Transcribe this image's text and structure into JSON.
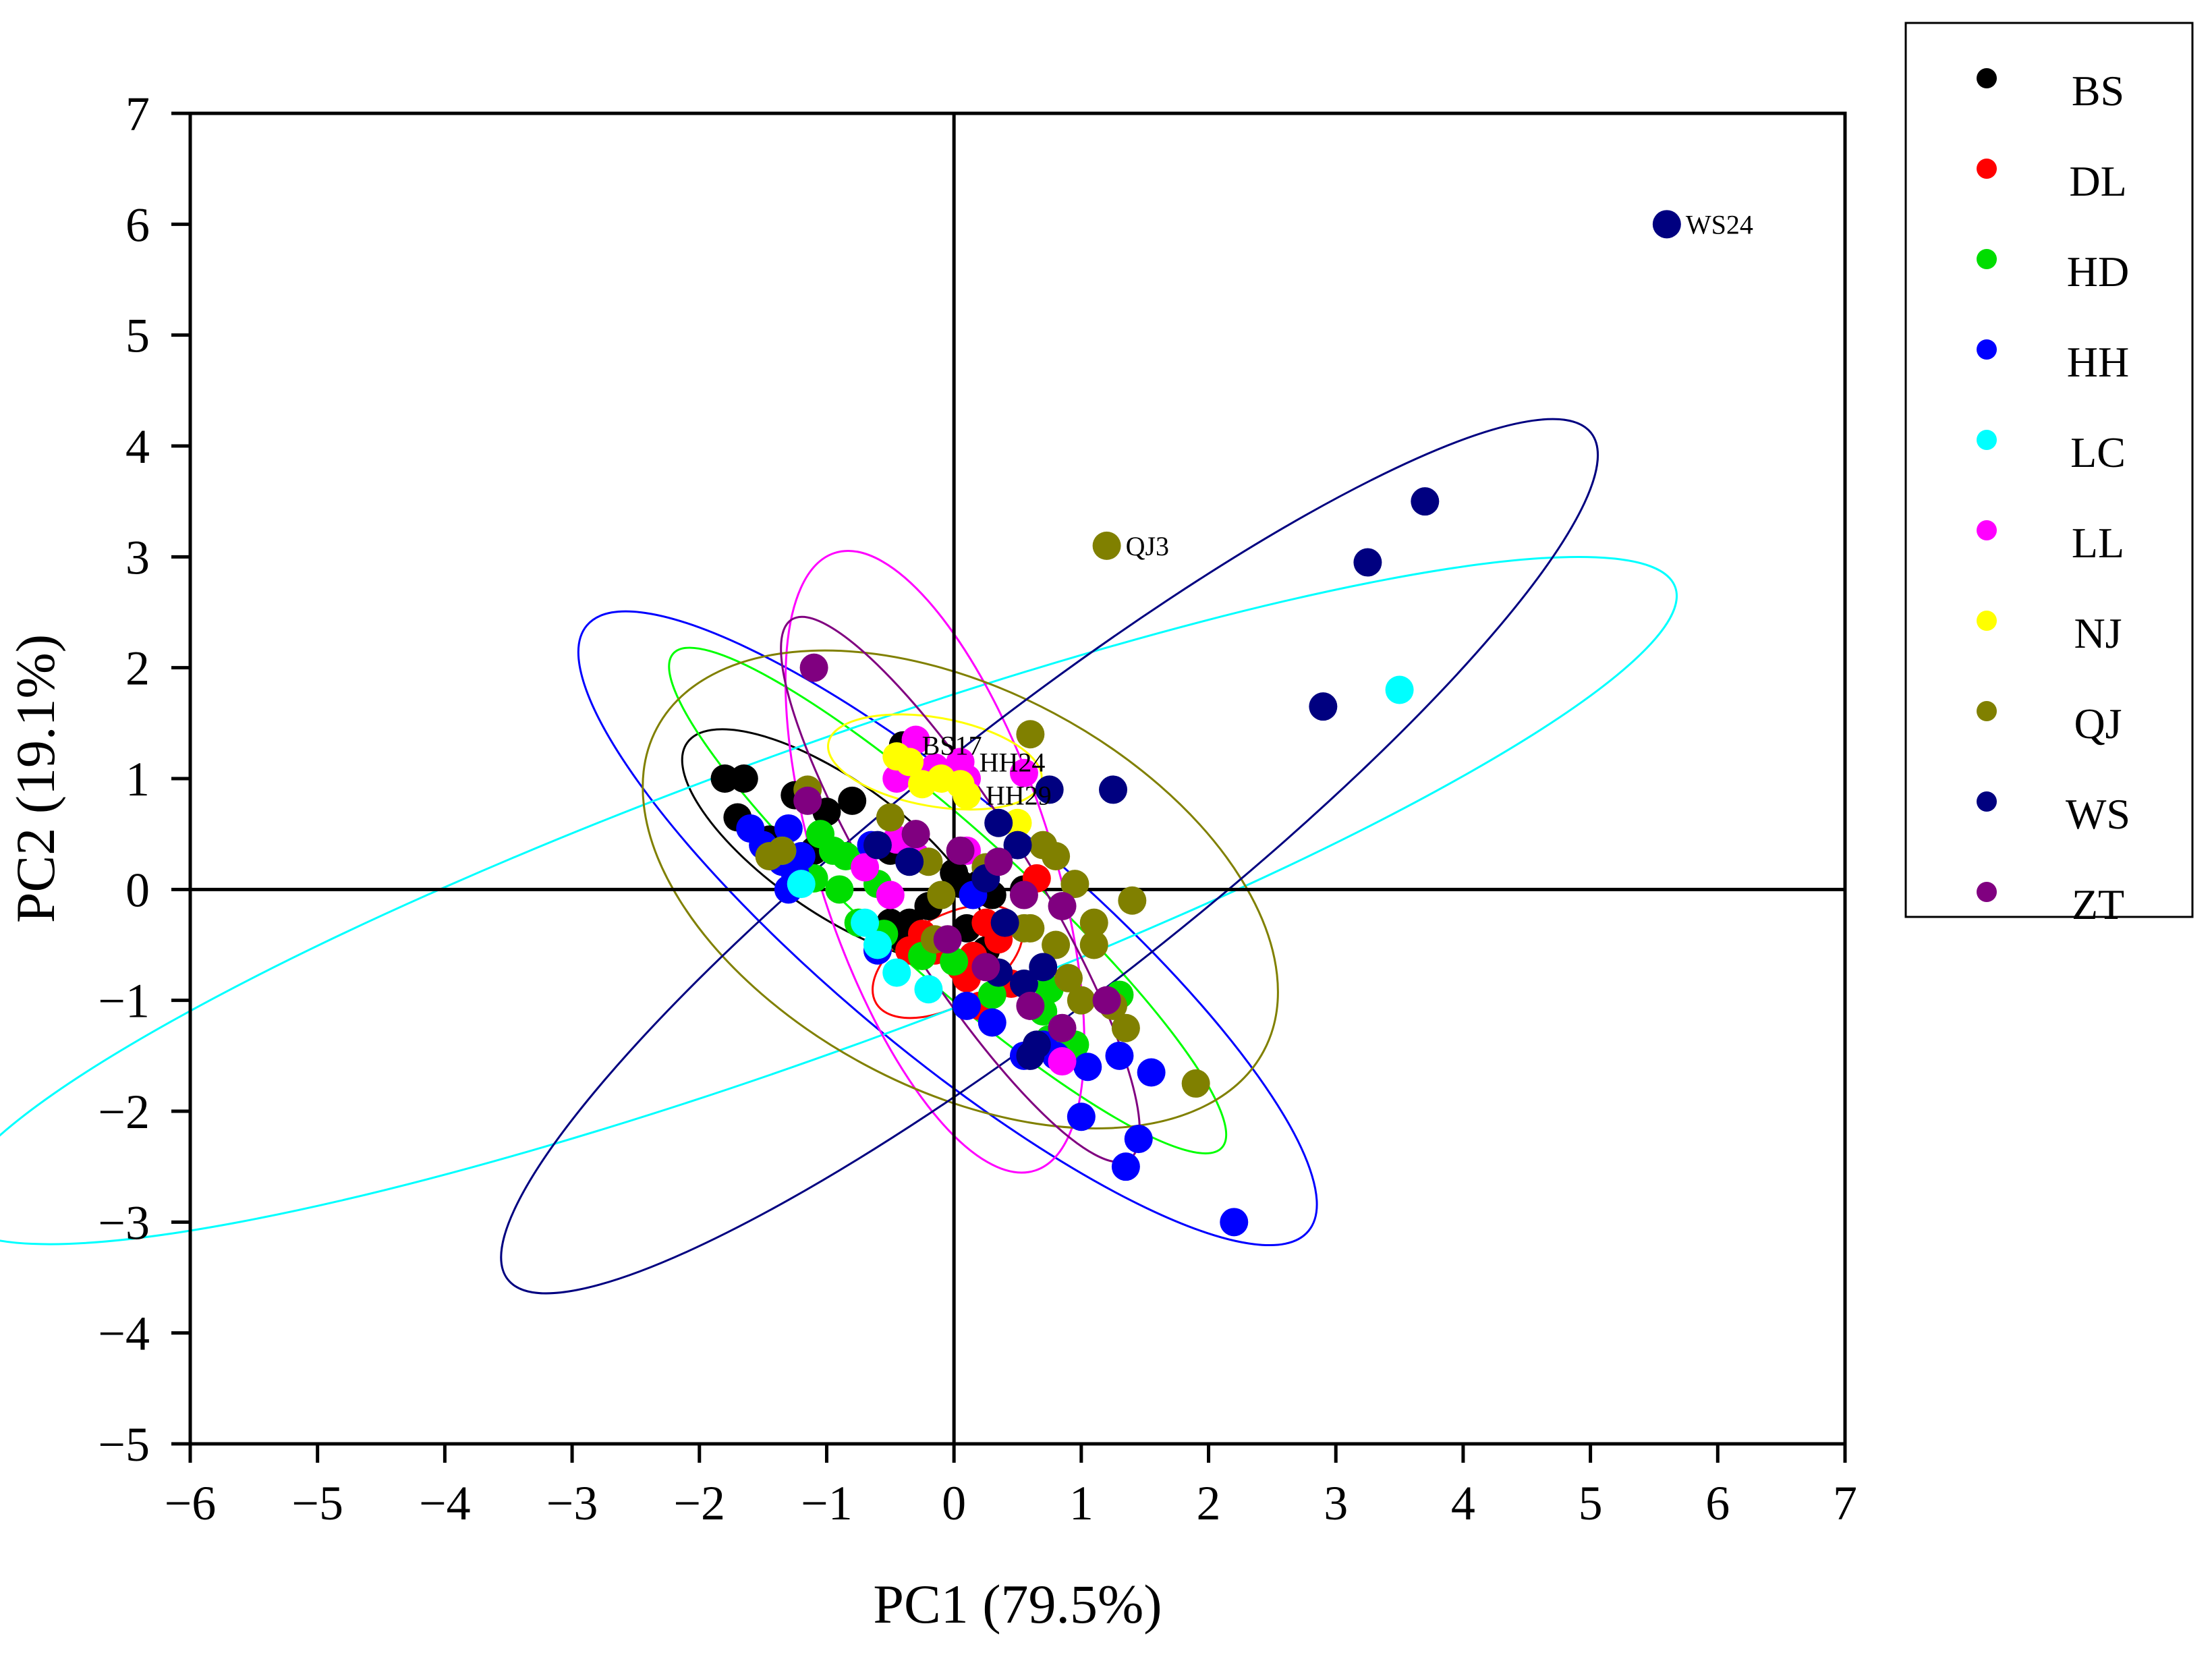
{
  "chart_data": {
    "type": "scatter",
    "title": "",
    "xlabel": "PC1 (79.5%)",
    "ylabel": "PC2 (19.1%)",
    "xlim": [
      -6,
      7
    ],
    "ylim": [
      -5,
      7
    ],
    "xticks": [
      -6,
      -5,
      -4,
      -3,
      -2,
      -1,
      0,
      1,
      2,
      3,
      4,
      5,
      6,
      7
    ],
    "yticks": [
      -5,
      -4,
      -3,
      -2,
      -1,
      0,
      1,
      2,
      3,
      4,
      5,
      6,
      7
    ],
    "xtick_labels": [
      "−6",
      "−5",
      "−4",
      "−3",
      "−2",
      "−1",
      "0",
      "1",
      "2",
      "3",
      "4",
      "5",
      "6",
      "7"
    ],
    "ytick_labels": [
      "−5",
      "−4",
      "−3",
      "−2",
      "−1",
      "0",
      "1",
      "2",
      "3",
      "4",
      "5",
      "6",
      "7"
    ],
    "grid": false,
    "zero_lines": true,
    "legend_position": "right",
    "series": [
      {
        "name": "BS",
        "color": "#000000",
        "points": [
          [
            -1.8,
            1.0
          ],
          [
            -1.65,
            1.0
          ],
          [
            -1.7,
            0.65
          ],
          [
            -1.45,
            0.45
          ],
          [
            -1.25,
            0.85
          ],
          [
            -1.0,
            0.7
          ],
          [
            -0.8,
            0.8
          ],
          [
            -1.1,
            0.35
          ],
          [
            -0.4,
            1.3
          ],
          [
            -0.5,
            0.35
          ],
          [
            -0.35,
            -0.3
          ],
          [
            -0.4,
            -0.45
          ],
          [
            -0.2,
            -0.15
          ],
          [
            0.0,
            0.15
          ],
          [
            0.05,
            0.05
          ],
          [
            0.2,
            0.05
          ],
          [
            0.3,
            -0.05
          ],
          [
            -0.1,
            -0.5
          ],
          [
            0.1,
            -0.35
          ],
          [
            0.25,
            -0.55
          ],
          [
            0.55,
            0.0
          ],
          [
            0.35,
            -0.75
          ],
          [
            -0.5,
            -0.3
          ]
        ]
      },
      {
        "name": "DL",
        "color": "#ff0000",
        "points": [
          [
            -0.25,
            -0.4
          ],
          [
            -0.15,
            -0.55
          ],
          [
            0.05,
            -0.7
          ],
          [
            0.25,
            -0.3
          ],
          [
            0.35,
            -0.45
          ],
          [
            0.15,
            -0.6
          ],
          [
            0.45,
            -0.85
          ],
          [
            0.65,
            0.1
          ],
          [
            0.2,
            -1.05
          ],
          [
            0.1,
            -0.8
          ],
          [
            -0.35,
            -0.55
          ]
        ]
      },
      {
        "name": "HD",
        "color": "#00dd00",
        "points": [
          [
            -1.05,
            0.5
          ],
          [
            -0.95,
            0.35
          ],
          [
            -0.85,
            0.3
          ],
          [
            -1.1,
            0.1
          ],
          [
            -0.75,
            -0.3
          ],
          [
            -0.55,
            -0.4
          ],
          [
            -0.25,
            -0.6
          ],
          [
            0.0,
            -0.65
          ],
          [
            0.3,
            -0.95
          ],
          [
            0.7,
            -1.1
          ],
          [
            0.75,
            -1.35
          ],
          [
            0.95,
            -1.4
          ],
          [
            1.3,
            -0.95
          ],
          [
            0.75,
            -0.9
          ],
          [
            -0.6,
            0.05
          ],
          [
            -0.9,
            0.0
          ]
        ]
      },
      {
        "name": "HH",
        "color": "#0000ff",
        "points": [
          [
            -1.6,
            0.55
          ],
          [
            -1.5,
            0.4
          ],
          [
            -1.35,
            0.25
          ],
          [
            -1.25,
            0.15
          ],
          [
            -1.3,
            0.0
          ],
          [
            -1.2,
            0.3
          ],
          [
            -1.3,
            0.55
          ],
          [
            -0.6,
            -0.55
          ],
          [
            -0.65,
            0.4
          ],
          [
            0.1,
            -1.05
          ],
          [
            0.3,
            -1.2
          ],
          [
            0.55,
            -1.5
          ],
          [
            0.7,
            -1.4
          ],
          [
            0.8,
            -1.5
          ],
          [
            1.05,
            -1.6
          ],
          [
            1.3,
            -1.5
          ],
          [
            1.55,
            -1.65
          ],
          [
            1.45,
            -2.25
          ],
          [
            1.0,
            -2.05
          ],
          [
            1.35,
            -2.5
          ],
          [
            2.2,
            -3.0
          ],
          [
            0.15,
            -0.05
          ]
        ]
      },
      {
        "name": "LC",
        "color": "#00ffff",
        "points": [
          [
            -1.35,
            0.35
          ],
          [
            -1.2,
            0.05
          ],
          [
            -0.7,
            -0.3
          ],
          [
            -0.6,
            -0.5
          ],
          [
            -0.45,
            -0.75
          ],
          [
            -0.2,
            -0.9
          ],
          [
            3.5,
            1.8
          ]
        ]
      },
      {
        "name": "LL",
        "color": "#ff00ff",
        "points": [
          [
            -0.3,
            1.35
          ],
          [
            -0.45,
            1.0
          ],
          [
            -0.15,
            1.1
          ],
          [
            0.05,
            1.15
          ],
          [
            0.1,
            1.0
          ],
          [
            0.55,
            1.05
          ],
          [
            -0.45,
            0.45
          ],
          [
            -0.3,
            0.3
          ],
          [
            -0.5,
            -0.05
          ],
          [
            0.1,
            0.35
          ],
          [
            0.85,
            -1.55
          ],
          [
            -0.7,
            0.2
          ]
        ]
      },
      {
        "name": "NJ",
        "color": "#ffff00",
        "points": [
          [
            -0.45,
            1.2
          ],
          [
            -0.35,
            1.15
          ],
          [
            -0.1,
            1.0
          ],
          [
            0.05,
            0.95
          ],
          [
            0.1,
            0.85
          ],
          [
            -0.25,
            0.95
          ],
          [
            0.5,
            0.6
          ]
        ]
      },
      {
        "name": "QJ",
        "color": "#808000",
        "points": [
          [
            1.2,
            3.1
          ],
          [
            -1.15,
            0.9
          ],
          [
            -1.45,
            0.3
          ],
          [
            -1.35,
            0.35
          ],
          [
            -0.5,
            0.65
          ],
          [
            -0.2,
            0.25
          ],
          [
            0.6,
            1.4
          ],
          [
            0.7,
            0.4
          ],
          [
            0.8,
            0.3
          ],
          [
            0.95,
            0.05
          ],
          [
            1.4,
            -0.1
          ],
          [
            1.1,
            -0.5
          ],
          [
            0.9,
            -0.8
          ],
          [
            1.0,
            -1.0
          ],
          [
            1.25,
            -1.05
          ],
          [
            1.35,
            -1.25
          ],
          [
            1.9,
            -1.75
          ],
          [
            -0.15,
            -0.45
          ],
          [
            0.55,
            -0.35
          ],
          [
            0.8,
            -0.5
          ],
          [
            1.1,
            -0.3
          ],
          [
            0.6,
            -0.35
          ],
          [
            -0.1,
            -0.05
          ],
          [
            0.25,
            0.2
          ]
        ]
      },
      {
        "name": "WS",
        "color": "#000080",
        "points": [
          [
            5.6,
            6.0
          ],
          [
            3.7,
            3.5
          ],
          [
            3.25,
            2.95
          ],
          [
            2.9,
            1.65
          ],
          [
            1.25,
            0.9
          ],
          [
            0.75,
            0.9
          ],
          [
            0.35,
            0.6
          ],
          [
            0.25,
            0.1
          ],
          [
            0.5,
            0.4
          ],
          [
            -0.35,
            0.25
          ],
          [
            -0.6,
            0.4
          ],
          [
            0.4,
            -0.3
          ],
          [
            0.35,
            -0.75
          ],
          [
            0.55,
            -0.85
          ],
          [
            0.7,
            -0.7
          ],
          [
            0.65,
            -1.4
          ],
          [
            0.6,
            -1.5
          ]
        ]
      },
      {
        "name": "ZT",
        "color": "#800080",
        "points": [
          [
            -1.1,
            2.0
          ],
          [
            -1.15,
            0.8
          ],
          [
            -0.3,
            0.5
          ],
          [
            0.05,
            0.35
          ],
          [
            0.35,
            0.25
          ],
          [
            0.55,
            -0.05
          ],
          [
            0.85,
            -0.15
          ],
          [
            0.6,
            -1.05
          ],
          [
            0.85,
            -1.25
          ],
          [
            1.2,
            -1.0
          ],
          [
            -0.05,
            -0.45
          ],
          [
            0.25,
            -0.7
          ]
        ]
      }
    ],
    "confidence_ellipses": [
      {
        "series": "BS",
        "color": "#000000",
        "cx": -0.95,
        "cy": 0.4,
        "rx": 1.4,
        "ry": 0.6,
        "angle_deg": -35
      },
      {
        "series": "DL",
        "color": "#ff0000",
        "cx": -0.05,
        "cy": -0.65,
        "rx": 0.65,
        "ry": 0.4,
        "angle_deg": 30
      },
      {
        "series": "HD",
        "color": "#00ff00",
        "cx": -0.05,
        "cy": -0.1,
        "rx": 2.9,
        "ry": 0.65,
        "angle_deg": -42
      },
      {
        "series": "HH",
        "color": "#0000ff",
        "cx": -0.05,
        "cy": -0.35,
        "rx": 3.7,
        "ry": 1.1,
        "angle_deg": -40
      },
      {
        "series": "LC",
        "color": "#00ffff",
        "cx": -1.1,
        "cy": -0.1,
        "rx": 7.2,
        "ry": 1.35,
        "angle_deg": 20
      },
      {
        "series": "LL",
        "color": "#ff00ff",
        "cx": -0.15,
        "cy": 0.25,
        "rx": 2.55,
        "ry": 1.05,
        "angle_deg": -72
      },
      {
        "series": "NJ",
        "color": "#ffff00",
        "cx": -0.15,
        "cy": 1.15,
        "rx": 0.85,
        "ry": 0.4,
        "angle_deg": -10
      },
      {
        "series": "QJ",
        "color": "#808000",
        "cx": 0.05,
        "cy": 0.0,
        "rx": 2.7,
        "ry": 1.8,
        "angle_deg": -28
      },
      {
        "series": "WS",
        "color": "#000080",
        "cx": 0.75,
        "cy": 0.3,
        "rx": 5.4,
        "ry": 1.25,
        "angle_deg": 38
      },
      {
        "series": "ZT",
        "color": "#800080",
        "cx": 0.05,
        "cy": 0.0,
        "rx": 2.5,
        "ry": 0.65,
        "angle_deg": -58
      }
    ],
    "annotations": [
      {
        "text": "WS24",
        "x": 5.6,
        "y": 6.0
      },
      {
        "text": "QJ3",
        "x": 1.2,
        "y": 3.1
      },
      {
        "text": "BS17",
        "x": -0.4,
        "y": 1.3
      },
      {
        "text": "HH24",
        "x": 0.05,
        "y": 1.15
      },
      {
        "text": "HH29",
        "x": 0.1,
        "y": 0.85
      }
    ]
  }
}
